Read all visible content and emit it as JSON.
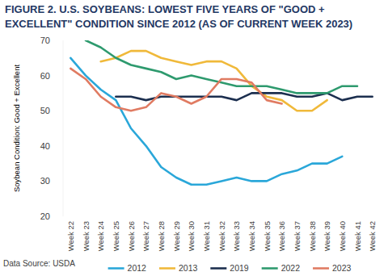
{
  "chart_data": {
    "type": "line",
    "title": "FIGURE 2. U.S. SOYBEANS: LOWEST FIVE YEARS OF \"GOOD + EXCELLENT\" CONDITION SINCE 2012 (AS OF CURRENT WEEK 2023)",
    "y_label": "Soybean Condition: Good + Excellent",
    "source": "Data Source: USDA",
    "categories": [
      "Week 22",
      "Week 23",
      "Week 24",
      "Week 25",
      "Week 26",
      "Week 27",
      "Week 28",
      "Week 29",
      "Week 30",
      "Week 31",
      "Week 32",
      "Week 33",
      "Week 34",
      "Week 35",
      "Week 36",
      "Week 37",
      "Week 38",
      "Week 39",
      "Week 40",
      "Week 41",
      "Week 42"
    ],
    "series": [
      {
        "name": "2012",
        "color": "#2aa7d9",
        "values": [
          65,
          60,
          56,
          53,
          45,
          40,
          34,
          31,
          29,
          29,
          30,
          31,
          30,
          30,
          32,
          33,
          35,
          35,
          37,
          null,
          null
        ]
      },
      {
        "name": "2013",
        "color": "#f0b93a",
        "values": [
          null,
          null,
          64,
          65,
          67,
          67,
          65,
          64,
          63,
          64,
          64,
          62,
          57,
          54,
          53,
          50,
          50,
          53,
          null,
          null,
          null
        ]
      },
      {
        "name": "2019",
        "color": "#1c2f4f",
        "values": [
          null,
          null,
          null,
          54,
          54,
          53,
          54,
          54,
          54,
          54,
          54,
          53,
          55,
          55,
          55,
          54,
          54,
          55,
          53,
          54,
          54
        ]
      },
      {
        "name": "2022",
        "color": "#2e9a6e",
        "values": [
          null,
          70,
          68,
          65,
          63,
          62,
          61,
          59,
          60,
          59,
          58,
          57,
          57,
          57,
          56,
          55,
          55,
          55,
          57,
          57,
          null
        ]
      },
      {
        "name": "2023",
        "color": "#e07b62",
        "values": [
          62,
          59,
          54,
          51,
          50,
          51,
          55,
          54,
          52,
          54,
          59,
          59,
          58,
          53,
          52,
          null,
          null,
          null,
          null,
          null,
          null
        ]
      }
    ],
    "ylim": [
      20,
      70
    ],
    "yticks": [
      20,
      30,
      40,
      50,
      60,
      70
    ],
    "grid": false,
    "legend": "bottom"
  }
}
